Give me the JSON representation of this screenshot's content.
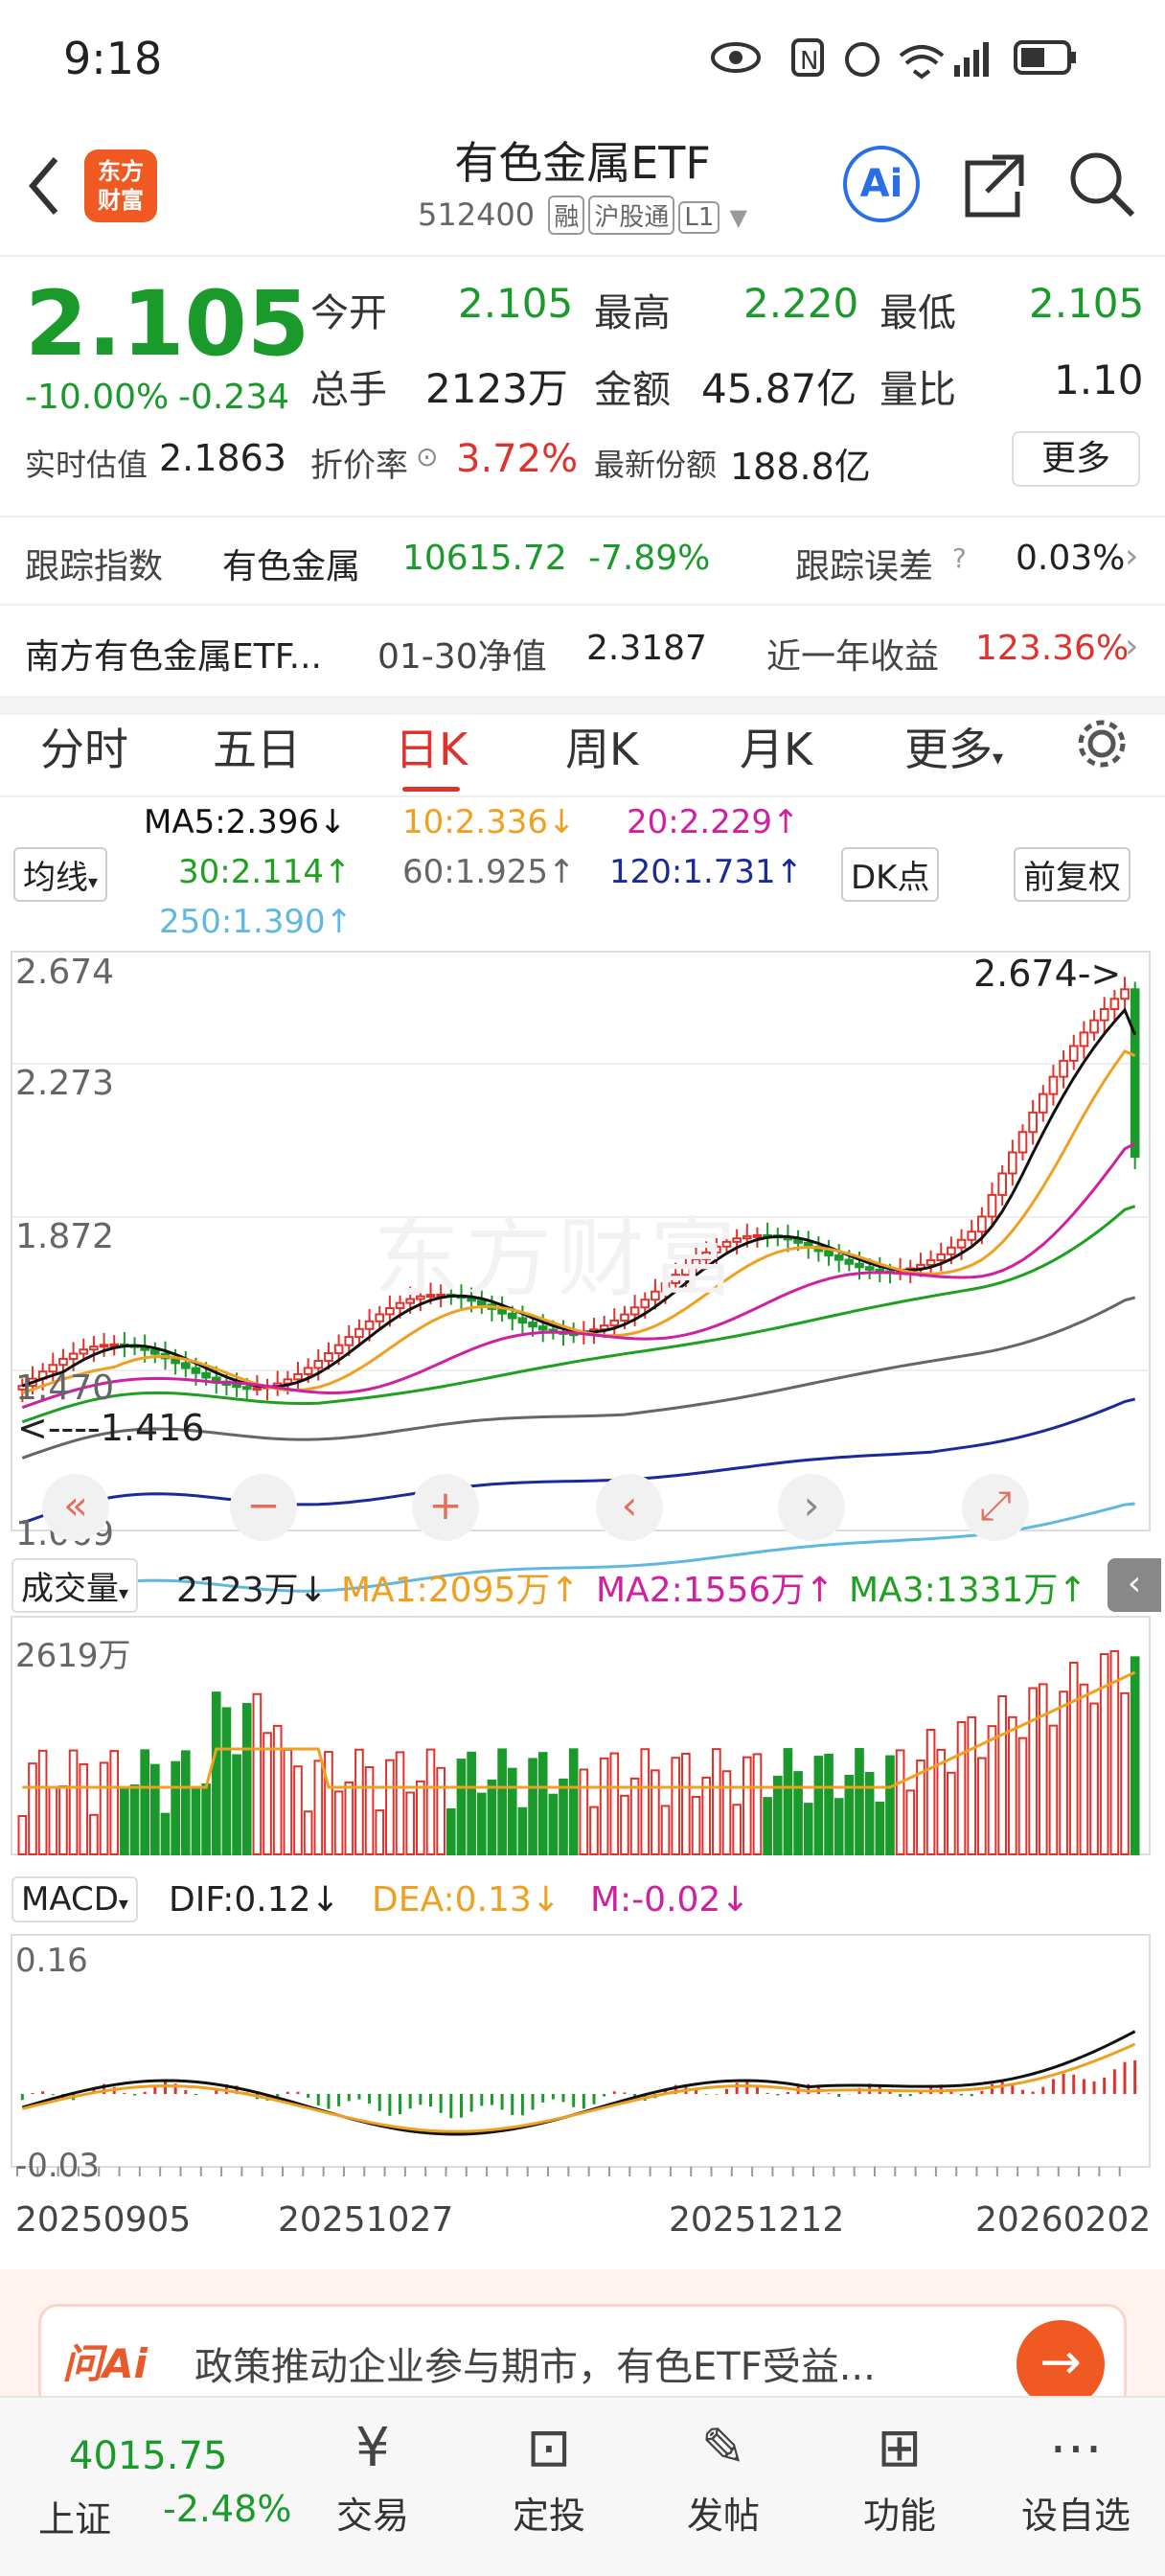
{
  "status_bar": {
    "time": "9:18"
  },
  "header": {
    "title": "有色金属ETF",
    "code": "512400",
    "tags": [
      "融",
      "沪股通",
      "L1"
    ],
    "logo_text": "东方财富",
    "ai_label": "Ai"
  },
  "quote": {
    "price": "2.105",
    "change_pct": "-10.00%",
    "change": "-0.234",
    "open_label": "今开",
    "open": "2.105",
    "high_label": "最高",
    "high": "2.220",
    "low_label": "最低",
    "low": "2.105",
    "vol_label": "总手",
    "vol": "2123万",
    "amt_label": "金额",
    "amt": "45.87亿",
    "ratio_label": "量比",
    "ratio": "1.10",
    "est_label": "实时估值",
    "est": "2.1863",
    "disc_label": "折价率",
    "disc": "3.72%",
    "share_label": "最新份额",
    "share": "188.8亿",
    "more": "更多"
  },
  "tracking": {
    "label": "跟踪指数",
    "index_name": "有色金属",
    "index_value": "10615.72",
    "index_change": "-7.89%",
    "err_label": "跟踪误差",
    "err": "0.03%"
  },
  "fund": {
    "name": "南方有色金属ETF...",
    "nav_label": "01-30净值",
    "nav": "2.3187",
    "yr_label": "近一年收益",
    "yr": "123.36%"
  },
  "tabs": [
    "分时",
    "五日",
    "日K",
    "周K",
    "月K",
    "更多"
  ],
  "ma": {
    "ma5": "MA5:2.396↓",
    "ma10": "10:2.336↓",
    "ma20": "20:2.229↑",
    "ma30": "30:2.114↑",
    "ma60": "60:1.925↑",
    "ma120": "120:1.731↑",
    "ma250": "250:1.390↑",
    "select": "均线",
    "dk": "DK点",
    "fq": "前复权"
  },
  "kline": {
    "y_labels": [
      "2.674",
      "2.273",
      "1.872",
      "1.470",
      "1.069"
    ],
    "max_mark": "2.674->",
    "min_mark": "<----1.416",
    "watermark": "东方财富"
  },
  "volume": {
    "select": "成交量",
    "cur": "2123万↓",
    "ma1": "MA1:2095万↑",
    "ma2": "MA2:1556万↑",
    "ma3": "MA3:1331万↑",
    "ymax": "2619万"
  },
  "macd": {
    "select": "MACD",
    "dif": "DIF:0.12↓",
    "dea": "DEA:0.13↓",
    "m": "M:-0.02↓",
    "ymax": "0.16",
    "ymin": "-0.03"
  },
  "dates": [
    "20250905",
    "20251027",
    "20251212",
    "20260202"
  ],
  "ai_bar": {
    "brand": "问Ai",
    "text": "政策推动企业参与期市，有色ETF受益..."
  },
  "bottom": {
    "index_value": "4015.75",
    "index_name": "上证",
    "index_change": "-2.48%",
    "items": [
      "交易",
      "定投",
      "发帖",
      "功能",
      "设自选"
    ]
  },
  "colors": {
    "up": "#e0322c",
    "down": "#1a9a2a",
    "ma5": "#111111",
    "ma10": "#f0a020",
    "ma20": "#d020a0",
    "ma30": "#20a020",
    "ma60": "#666666",
    "ma120": "#1a2a9a",
    "ma250": "#60b8e0"
  }
}
